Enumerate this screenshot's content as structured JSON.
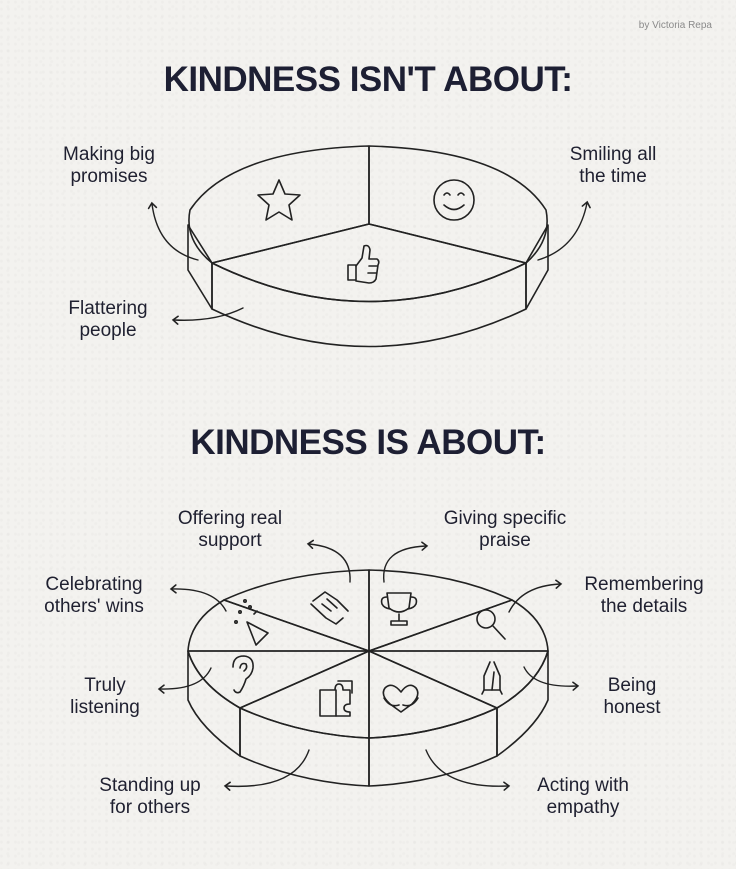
{
  "credit": "by Victoria Repa",
  "title_top": "KINDNESS ISN'T ABOUT:",
  "title_bottom": "KINDNESS IS ABOUT:",
  "isnt_labels": {
    "promises": "Making big\npromises",
    "smiling": "Smiling all\nthe time",
    "flattering": "Flattering\npeople"
  },
  "is_labels": {
    "support": "Offering real\nsupport",
    "praise": "Giving specific\npraise",
    "celebrating": "Celebrating\nothers' wins",
    "remembering": "Remembering\nthe details",
    "listening": "Truly\nlistening",
    "honest": "Being\nhonest",
    "standing": "Standing up\nfor others",
    "empathy": "Acting with\nempathy"
  },
  "colors": {
    "peach": "#f3d4b6",
    "pink": "#f1bcb1",
    "teal": "#9ed8d8",
    "lavender": "#d7c8ea",
    "red": "#f6a0a1",
    "salmon": "#f8b9ae",
    "orange": "#fcd3b8",
    "periwinkle": "#c3c7ec",
    "blue": "#b7d6ee",
    "mint": "#ccefd2",
    "lime": "#e6f3c5"
  }
}
